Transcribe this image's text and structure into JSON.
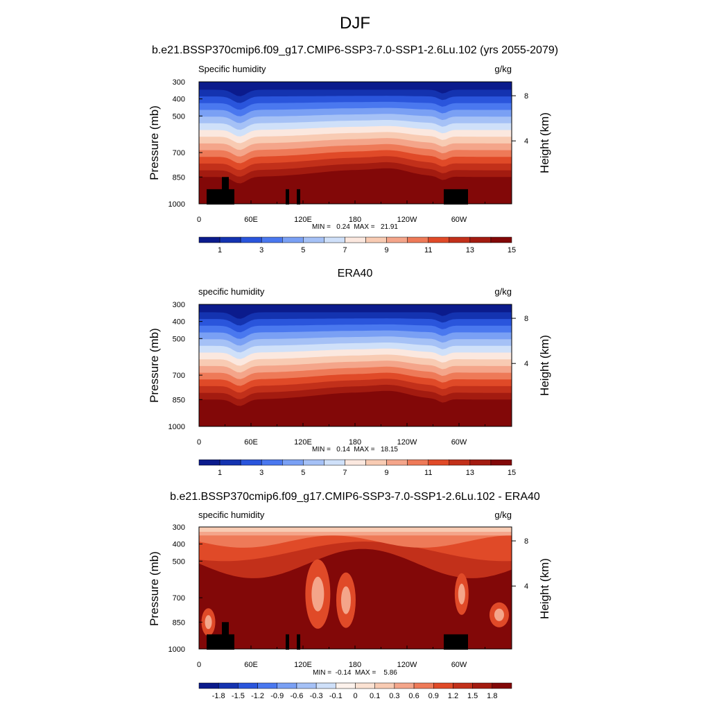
{
  "figure": {
    "title": "DJF",
    "colors": {
      "seq15": [
        "#0b1b8c",
        "#1433b0",
        "#2a55dc",
        "#4a78ef",
        "#7aa0f4",
        "#a5c1f6",
        "#cfe0f9",
        "#fbe8df",
        "#f8cbb3",
        "#f4a58a",
        "#ee7a58",
        "#e04a28",
        "#c2301a",
        "#a31b10",
        "#820808"
      ],
      "diff": [
        "#0b1b8c",
        "#1433b0",
        "#2a55dc",
        "#4a78ef",
        "#7aa0f4",
        "#a5c1f6",
        "#cfe0f9",
        "#fdf2ec",
        "#fbe2d3",
        "#f8cbb3",
        "#f4a58a",
        "#ee7a58",
        "#e04a28",
        "#c2301a",
        "#a31b10",
        "#820808"
      ]
    }
  },
  "chart_data": [
    {
      "type": "heatmap",
      "title": "b.e21.BSSP370cmip6.f09_g17.CMIP6-SSP3-7.0-SSP1-2.6Lu.102 (yrs 2055-2079)",
      "left_label": "Specific humidity",
      "units": "g/kg",
      "ylabel": "Pressure (mb)",
      "ylabel_right": "Height (km)",
      "x_ticks": [
        "0",
        "60E",
        "120E",
        "180",
        "120W",
        "60W"
      ],
      "y_ticks": [
        "300",
        "400",
        "500",
        "700",
        "850",
        "1000"
      ],
      "right_ticks": [
        "8",
        "4"
      ],
      "stats": "MIN =   0.24  MAX =   21.91",
      "min": 0.24,
      "max": 21.91,
      "colorbar_labels": [
        "1",
        "3",
        "5",
        "7",
        "9",
        "11",
        "13",
        "15"
      ]
    },
    {
      "type": "heatmap",
      "title": "ERA40",
      "left_label": "specific humidity",
      "units": "g/kg",
      "ylabel": "Pressure (mb)",
      "ylabel_right": "Height (km)",
      "x_ticks": [
        "0",
        "60E",
        "120E",
        "180",
        "120W",
        "60W"
      ],
      "y_ticks": [
        "300",
        "400",
        "500",
        "700",
        "850",
        "1000"
      ],
      "right_ticks": [
        "8",
        "4"
      ],
      "stats": "MIN =   0.14  MAX =   18.15",
      "min": 0.14,
      "max": 18.15,
      "colorbar_labels": [
        "1",
        "3",
        "5",
        "7",
        "9",
        "11",
        "13",
        "15"
      ]
    },
    {
      "type": "heatmap",
      "title": "b.e21.BSSP370cmip6.f09_g17.CMIP6-SSP3-7.0-SSP1-2.6Lu.102 - ERA40",
      "left_label": "specific humidity",
      "units": "g/kg",
      "ylabel": "Pressure (mb)",
      "ylabel_right": "Height (km)",
      "x_ticks": [
        "0",
        "60E",
        "120E",
        "180",
        "120W",
        "60W"
      ],
      "y_ticks": [
        "300",
        "400",
        "500",
        "700",
        "850",
        "1000"
      ],
      "right_ticks": [
        "8",
        "4"
      ],
      "stats": "MIN =  -0.14  MAX =    5.86",
      "min": -0.14,
      "max": 5.86,
      "colorbar_labels": [
        "-1.8",
        "-1.5",
        "-1.2",
        "-0.9",
        "-0.6",
        "-0.3",
        "-0.1",
        "0",
        "0.1",
        "0.3",
        "0.6",
        "0.9",
        "1.2",
        "1.5",
        "1.8"
      ]
    }
  ]
}
